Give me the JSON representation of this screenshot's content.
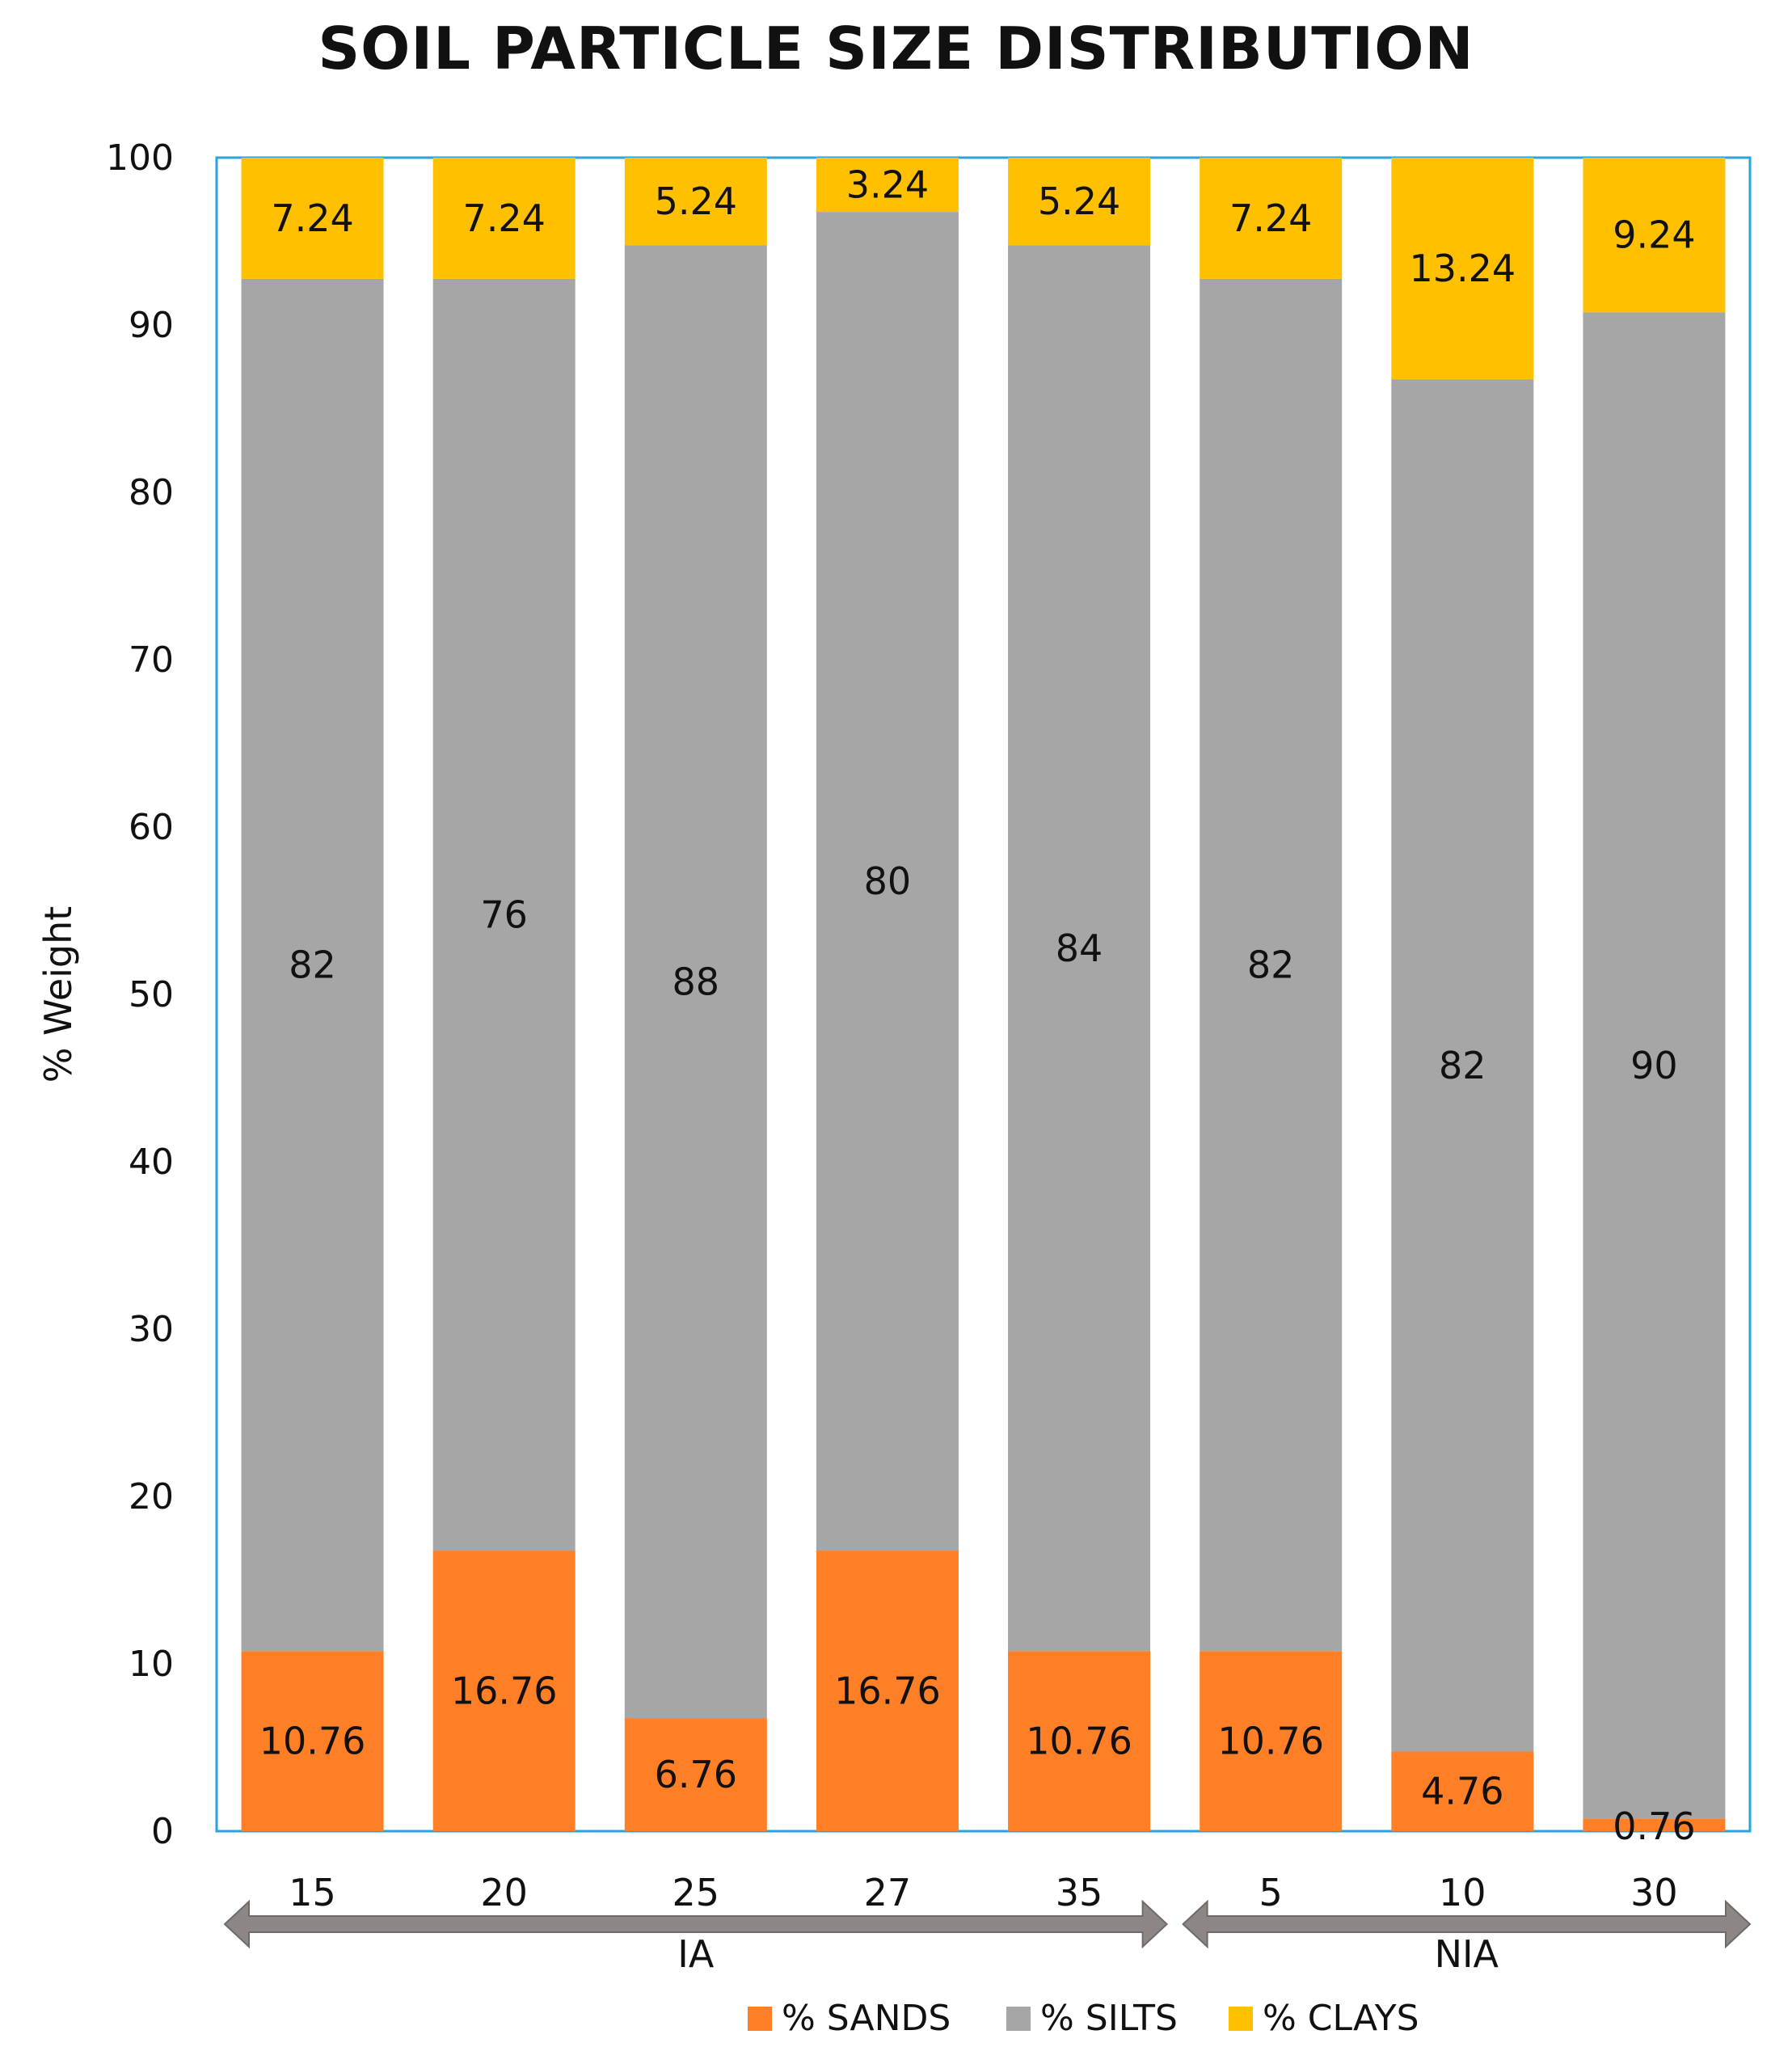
{
  "chart_data": {
    "type": "bar",
    "stacked": true,
    "title": "SOIL PARTICLE SIZE DISTRIBUTION",
    "ylabel": "% Weight",
    "xlabel": "",
    "ylim": [
      0,
      100
    ],
    "yticks": [
      0,
      10,
      20,
      30,
      40,
      50,
      60,
      70,
      80,
      90,
      100
    ],
    "categories": [
      "15",
      "20",
      "25",
      "27",
      "35",
      "5",
      "10",
      "30"
    ],
    "groups": [
      {
        "label": "IA",
        "start": 0,
        "end": 4
      },
      {
        "label": "NIA",
        "start": 5,
        "end": 7
      }
    ],
    "series": [
      {
        "name": "% SANDS",
        "color": "#FF7F27",
        "values": [
          10.76,
          16.76,
          6.76,
          16.76,
          10.76,
          10.76,
          4.76,
          0.76
        ],
        "labels": [
          "10.76",
          "16.76",
          "6.76",
          "16.76",
          "10.76",
          "10.76",
          "4.76",
          "0.76"
        ]
      },
      {
        "name": "% SILTS",
        "color": "#A6A6A6",
        "values": [
          82,
          76,
          88,
          80,
          84,
          82,
          82,
          90
        ],
        "labels": [
          "82",
          "76",
          "88",
          "80",
          "84",
          "82",
          "82",
          "90"
        ]
      },
      {
        "name": "% CLAYS",
        "color": "#FFC000",
        "values": [
          7.24,
          7.24,
          5.24,
          3.24,
          5.24,
          7.24,
          13.24,
          9.24
        ],
        "labels": [
          "7.24",
          "7.24",
          "5.24",
          "3.24",
          "5.24",
          "7.24",
          "13.24",
          "9.24"
        ]
      }
    ],
    "legend_position": "bottom",
    "grid": false,
    "plot_border_color": "#29A3DC",
    "arrow_color": "#8C8785"
  }
}
